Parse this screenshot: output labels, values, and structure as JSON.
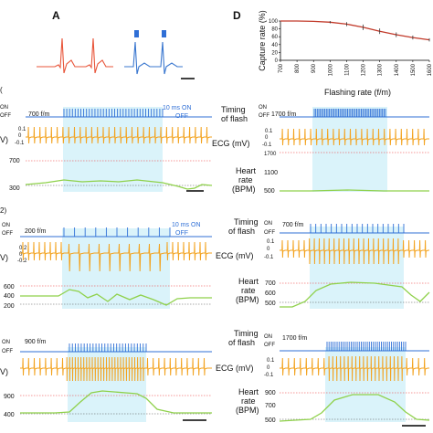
{
  "panels": {
    "a": {
      "label": "A"
    },
    "d": {
      "label": "D"
    },
    "b1": {
      "prefix": "(",
      "rate": "700 f/m",
      "pulse": "10 ms ON",
      "pulse2": "OFF",
      "y0": "0.1",
      "y1": "0",
      "y2": "-0.1",
      "ecg_unit": "V)",
      "hr_top": "700",
      "hr_bottom": "300"
    },
    "b2": {
      "timing_l1": "Timing",
      "timing_l2": "of flash",
      "rate": "1700 f/m",
      "ecg": "ECG (mV)",
      "y0": "0.1",
      "y1": "0",
      "y2": "-0.1",
      "hr_l1": "Heart",
      "hr_l2": "rate",
      "hr_l3": "(BPM)",
      "hr_top1": "1700",
      "hr_top2": "1100",
      "hr_bottom": "500"
    },
    "c1": {
      "prefix": "2)",
      "rate": "200 f/m",
      "pulse": "10 ms ON",
      "pulse2": "OFF",
      "y0": "0.2",
      "y1": "0",
      "y2": "-0.2",
      "ecg_unit": "V)",
      "hr_top": "600",
      "hr_mid": "400",
      "hr_bottom": "200"
    },
    "c2": {
      "timing_l1": "Timing",
      "timing_l2": "of flash",
      "rate": "700 f/m",
      "ecg": "ECG (mV)",
      "y0": "0.1",
      "y1": "0",
      "y2": "-0.1",
      "hr_l1": "Heart",
      "hr_l2": "rate",
      "hr_l3": "(BPM)",
      "hr_top": "700",
      "hr_mid": "600",
      "hr_bottom": "500"
    },
    "c3": {
      "rate": "900 f/m",
      "ecg_unit": "V)",
      "hr_top": "900",
      "hr_bottom": "400"
    },
    "c4": {
      "timing_l1": "Timing",
      "timing_l2": "of flash",
      "rate": "1700 f/m",
      "ecg": "ECG (mV)",
      "y0": "0.1",
      "y1": "0",
      "y2": "-0.1",
      "hr_l1": "Heart",
      "hr_l2": "rate",
      "hr_l3": "(BPM)",
      "hr_top": "900",
      "hr_mid": "700",
      "hr_bottom": "500"
    }
  },
  "onoff": {
    "on": "ON",
    "off": "OFF"
  },
  "chart_data": [
    {
      "type": "line",
      "panel": "D",
      "xlabel": "Flashing rate (f/m)",
      "ylabel": "Capture rate (%)",
      "xlim": [
        700,
        1600
      ],
      "ylim": [
        0,
        100
      ],
      "xticks": [
        "700",
        "800",
        "900",
        "1000",
        "1100",
        "1200",
        "1300",
        "1400",
        "1500",
        "1600"
      ],
      "yticks": [
        "0",
        "20",
        "40",
        "60",
        "80",
        "100"
      ],
      "grid": false,
      "series": [
        {
          "x": [
            700,
            800,
            900,
            1000,
            1100,
            1200,
            1300,
            1400,
            1500,
            1600
          ],
          "values": [
            100,
            100,
            99,
            97,
            92,
            84,
            74,
            65,
            58,
            52
          ],
          "err": [
            0,
            0,
            0,
            3,
            5,
            7,
            7,
            6,
            5,
            4
          ]
        }
      ]
    },
    {
      "type": "line",
      "panel": "B700",
      "hr_range": [
        300,
        700
      ],
      "ecg_range": [
        -0.1,
        0.1
      ],
      "flash_window": [
        0.27,
        0.73
      ]
    },
    {
      "type": "line",
      "panel": "B1700",
      "hr_range": [
        500,
        1700
      ],
      "ecg_range": [
        -0.1,
        0.1
      ],
      "flash_window": [
        0.4,
        0.78
      ]
    },
    {
      "type": "line",
      "panel": "C200",
      "hr_range": [
        200,
        600
      ],
      "ecg_range": [
        -0.2,
        0.2
      ],
      "flash_window": [
        0.2,
        0.7
      ]
    },
    {
      "type": "line",
      "panel": "C700",
      "hr_range": [
        500,
        700
      ],
      "ecg_range": [
        -0.1,
        0.1
      ],
      "flash_window": [
        0.22,
        0.78
      ]
    },
    {
      "type": "line",
      "panel": "C900",
      "hr_range": [
        400,
        900
      ],
      "ecg_range": [
        -0.1,
        0.1
      ],
      "flash_window": [
        0.27,
        0.67
      ]
    },
    {
      "type": "line",
      "panel": "C1700",
      "hr_range": [
        500,
        900
      ],
      "ecg_range": [
        -0.1,
        0.1
      ],
      "flash_window": [
        0.3,
        0.73
      ]
    }
  ]
}
